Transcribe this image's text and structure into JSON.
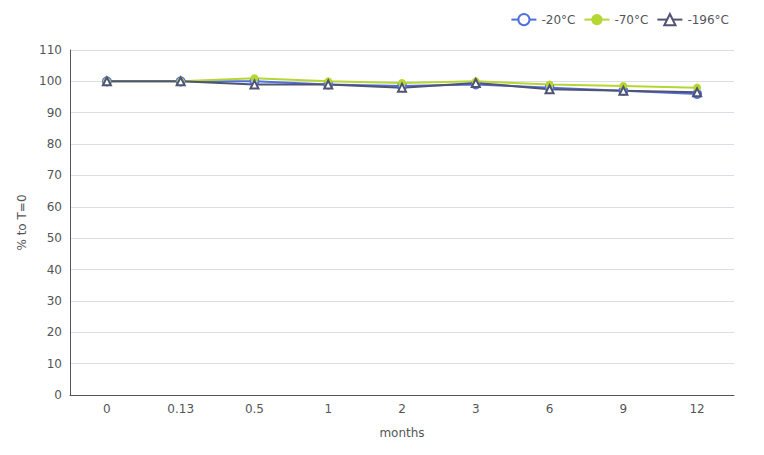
{
  "chart_data": {
    "type": "line",
    "categories": [
      "0",
      "0.13",
      "0.5",
      "1",
      "2",
      "3",
      "6",
      "9",
      "12"
    ],
    "series": [
      {
        "name": "-20°C",
        "marker": "circle-open",
        "values": [
          100,
          100,
          100,
          99,
          98.5,
          99,
          98,
          97,
          96
        ]
      },
      {
        "name": "-70°C",
        "marker": "circle",
        "values": [
          100,
          100,
          101,
          100,
          99.5,
          100,
          99,
          98.5,
          98
        ]
      },
      {
        "name": "-196°C",
        "marker": "triangle-open",
        "values": [
          100,
          100,
          99,
          99,
          98,
          99.5,
          97.5,
          97,
          96.5
        ]
      }
    ],
    "xlabel": "months",
    "ylabel": "% to T=0",
    "ylim": [
      0,
      110
    ],
    "yticks": [
      0,
      10,
      20,
      30,
      40,
      50,
      60,
      70,
      80,
      90,
      100,
      110
    ],
    "grid": true,
    "legend": "upper right"
  }
}
